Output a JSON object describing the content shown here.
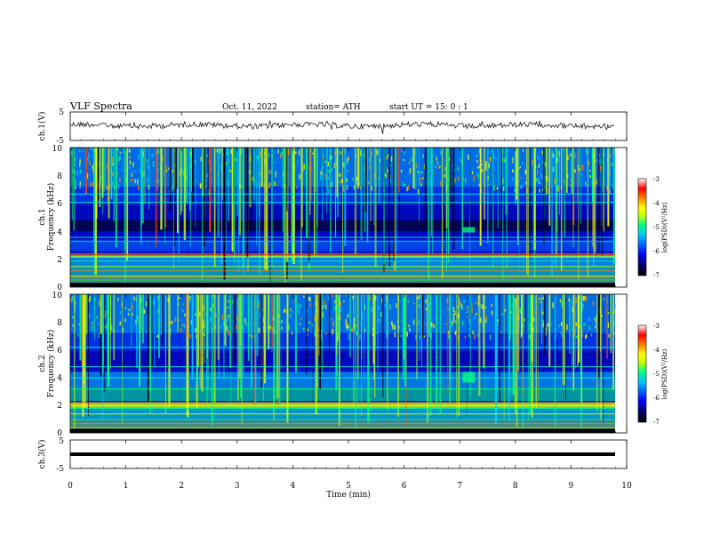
{
  "header": {
    "title": "VLF  Spectra",
    "date": "Oct. 11, 2022",
    "station": "station= ATH",
    "start_ut": "start  UT  =    15: 0   : 1"
  },
  "colors": {
    "trace": "#000000",
    "colormap": [
      "#000000",
      "#00007a",
      "#0000ff",
      "#0064ff",
      "#00c8ff",
      "#00ff80",
      "#c8ff00",
      "#ffff00",
      "#ff8000",
      "#ff0000",
      "#ffffff"
    ]
  },
  "chart_data": [
    {
      "type": "line",
      "panel": "ch1-waveform",
      "ylabel": "ch.1(V)",
      "ylim": [
        -5,
        5
      ],
      "y_ticks": [
        "5",
        "-5"
      ],
      "xlim": [
        0,
        10
      ]
    },
    {
      "type": "heatmap",
      "panel": "ch1-spectrogram",
      "ylabel": "Frequency  (kHz)",
      "channel_label": "ch.1",
      "ylim": [
        0,
        10
      ],
      "y_ticks": [
        "10",
        "8",
        "6",
        "4",
        "2",
        "0"
      ],
      "xlim": [
        0,
        10
      ],
      "colorbar": {
        "label": "log(PSD)(V²/Hz)",
        "range": [
          -7,
          -3
        ],
        "ticks": [
          "-3",
          "-4",
          "-5",
          "-6",
          "-7"
        ]
      }
    },
    {
      "type": "heatmap",
      "panel": "ch2-spectrogram",
      "ylabel": "Frequency  (kHz)",
      "channel_label": "ch.2",
      "ylim": [
        0,
        10
      ],
      "y_ticks": [
        "10",
        "8",
        "6",
        "4",
        "2",
        "0"
      ],
      "xlim": [
        0,
        10
      ],
      "colorbar": {
        "label": "log(PSD)(V²/Hz)",
        "range": [
          -7,
          -3
        ],
        "ticks": [
          "-3",
          "-4",
          "-5",
          "-6",
          "-7"
        ]
      }
    },
    {
      "type": "line",
      "panel": "ch3-waveform",
      "ylabel": "ch.3(V)",
      "ylim": [
        -5,
        5
      ],
      "y_ticks": [
        "5",
        "-5"
      ],
      "xlim": [
        0,
        10
      ],
      "xlabel": "Time  (min)",
      "x_ticks": [
        "0",
        "1",
        "2",
        "3",
        "4",
        "5",
        "6",
        "7",
        "8",
        "9",
        "10"
      ]
    }
  ]
}
